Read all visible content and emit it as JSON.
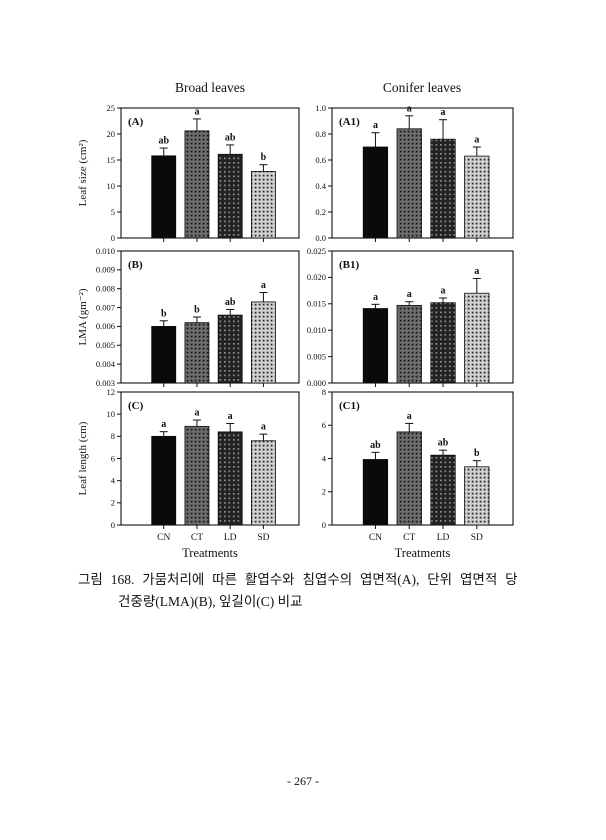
{
  "page": {
    "caption_line1": "그림 168. 가뭄처리에 따른 활엽수와 침엽수의 엽면적(A), 단위 엽면적 당",
    "caption_line2": "건중량(LMA)(B), 잎길이(C) 비교",
    "page_number": "- 267 -"
  },
  "column_titles": {
    "left": "Broad leaves",
    "right": "Conifer leaves"
  },
  "treatments": [
    "CN",
    "CT",
    "LD",
    "SD"
  ],
  "bar_styles": [
    "solid-black",
    "stipple-gray",
    "stipple-dark",
    "stipple-light"
  ],
  "chart_data": [
    {
      "type": "bar",
      "panel_label": "(A)",
      "group": "Broad leaves",
      "ylabel": "Leaf size (cm²)",
      "ylim": [
        0,
        25
      ],
      "yticks": [
        "0",
        "5",
        "10",
        "15",
        "20",
        "25"
      ],
      "categories": [
        "CN",
        "CT",
        "LD",
        "SD"
      ],
      "values": [
        15.8,
        20.6,
        16.1,
        12.8
      ],
      "errors": [
        1.5,
        2.3,
        1.8,
        1.3
      ],
      "letters": [
        "ab",
        "a",
        "ab",
        "b"
      ],
      "show_x_labels": false,
      "xlabel": ""
    },
    {
      "type": "bar",
      "panel_label": "(A1)",
      "group": "Conifer leaves",
      "ylabel": "",
      "ylim": [
        0,
        1.0
      ],
      "yticks": [
        "0.0",
        "0.2",
        "0.4",
        "0.6",
        "0.8",
        "1.0"
      ],
      "categories": [
        "CN",
        "CT",
        "LD",
        "SD"
      ],
      "values": [
        0.7,
        0.84,
        0.76,
        0.63
      ],
      "errors": [
        0.11,
        0.1,
        0.15,
        0.07
      ],
      "letters": [
        "a",
        "a",
        "a",
        "a"
      ],
      "show_x_labels": false,
      "xlabel": ""
    },
    {
      "type": "bar",
      "panel_label": "(B)",
      "group": "Broad leaves",
      "ylabel": "LMA (gm⁻²)",
      "ylim": [
        0.003,
        0.01
      ],
      "yticks": [
        "0.003",
        "0.004",
        "0.005",
        "0.006",
        "0.007",
        "0.008",
        "0.009",
        "0.010"
      ],
      "categories": [
        "CN",
        "CT",
        "LD",
        "SD"
      ],
      "values": [
        0.006,
        0.0062,
        0.0066,
        0.0073
      ],
      "errors": [
        0.0003,
        0.0003,
        0.0003,
        0.0005
      ],
      "letters": [
        "b",
        "b",
        "ab",
        "a"
      ],
      "show_x_labels": false,
      "xlabel": ""
    },
    {
      "type": "bar",
      "panel_label": "(B1)",
      "group": "Conifer leaves",
      "ylabel": "",
      "ylim": [
        0,
        0.025
      ],
      "yticks": [
        "0.000",
        "0.005",
        "0.010",
        "0.015",
        "0.020",
        "0.025"
      ],
      "categories": [
        "CN",
        "CT",
        "LD",
        "SD"
      ],
      "values": [
        0.0141,
        0.0147,
        0.0152,
        0.017
      ],
      "errors": [
        0.0008,
        0.0007,
        0.0009,
        0.0028
      ],
      "letters": [
        "a",
        "a",
        "a",
        "a"
      ],
      "show_x_labels": false,
      "xlabel": ""
    },
    {
      "type": "bar",
      "panel_label": "(C)",
      "group": "Broad leaves",
      "ylabel": "Leaf length (cm)",
      "ylim": [
        0,
        12
      ],
      "yticks": [
        "0",
        "2",
        "4",
        "6",
        "8",
        "10",
        "12"
      ],
      "categories": [
        "CN",
        "CT",
        "LD",
        "SD"
      ],
      "values": [
        8.0,
        8.9,
        8.4,
        7.6
      ],
      "errors": [
        0.42,
        0.57,
        0.76,
        0.6
      ],
      "letters": [
        "a",
        "a",
        "a",
        "a"
      ],
      "show_x_labels": true,
      "xlabel": "Treatments"
    },
    {
      "type": "bar",
      "panel_label": "(C1)",
      "group": "Conifer leaves",
      "ylabel": "",
      "ylim": [
        0,
        8
      ],
      "yticks": [
        "0",
        "2",
        "4",
        "6",
        "8"
      ],
      "categories": [
        "CN",
        "CT",
        "LD",
        "SD"
      ],
      "values": [
        3.94,
        5.6,
        4.2,
        3.5
      ],
      "errors": [
        0.43,
        0.51,
        0.3,
        0.37
      ],
      "letters": [
        "ab",
        "a",
        "ab",
        "b"
      ],
      "show_x_labels": true,
      "xlabel": "Treatments"
    }
  ]
}
